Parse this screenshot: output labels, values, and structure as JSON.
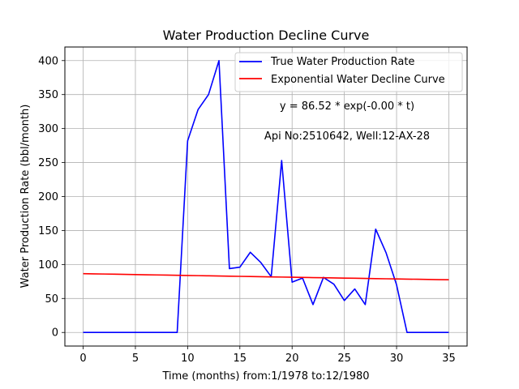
{
  "chart_data": {
    "type": "line",
    "title": "Water Production Decline Curve",
    "xlabel": "Time (months) from:1/1978 to:12/1980",
    "ylabel": "Water Production Rate (bbl/month)",
    "xlim": [
      -1.75,
      36.75
    ],
    "ylim": [
      -20,
      420
    ],
    "x_ticks": [
      0,
      5,
      10,
      15,
      20,
      25,
      30,
      35
    ],
    "y_ticks": [
      0,
      50,
      100,
      150,
      200,
      250,
      300,
      350,
      400
    ],
    "grid": true,
    "legend_position": "top-right",
    "series": [
      {
        "name": "True Water Production Rate",
        "color": "#0000ff",
        "x": [
          0,
          1,
          2,
          3,
          4,
          5,
          6,
          7,
          8,
          9,
          10,
          11,
          12,
          13,
          14,
          15,
          16,
          17,
          18,
          19,
          20,
          21,
          22,
          23,
          24,
          25,
          26,
          27,
          28,
          29,
          30,
          31,
          32,
          33,
          34,
          35
        ],
        "values": [
          0,
          0,
          0,
          0,
          0,
          0,
          0,
          0,
          0,
          0,
          282,
          328,
          350,
          400,
          94,
          96,
          118,
          103,
          82,
          253,
          74,
          80,
          41,
          81,
          71,
          47,
          64,
          41,
          152,
          117,
          70,
          0,
          0,
          0,
          0,
          0
        ]
      },
      {
        "name": "Exponential Water Decline Curve",
        "color": "#ff0000",
        "x": [
          0,
          1,
          2,
          3,
          4,
          5,
          6,
          7,
          8,
          9,
          10,
          11,
          12,
          13,
          14,
          15,
          16,
          17,
          18,
          19,
          20,
          21,
          22,
          23,
          24,
          25,
          26,
          27,
          28,
          29,
          30,
          31,
          32,
          33,
          34,
          35
        ],
        "values": [
          86.52,
          86.25,
          85.98,
          85.71,
          85.44,
          85.17,
          84.9,
          84.63,
          84.37,
          84.1,
          83.84,
          83.58,
          83.32,
          83.05,
          82.79,
          82.53,
          82.27,
          82.02,
          81.76,
          81.5,
          81.25,
          80.99,
          80.74,
          80.48,
          80.23,
          79.98,
          79.73,
          79.48,
          79.23,
          78.98,
          78.73,
          78.48,
          78.24,
          77.99,
          77.75,
          77.5
        ]
      }
    ],
    "annotations": [
      "y = 86.52 * exp(-0.00 * t)",
      "Api No:2510642, Well:12-AX-28"
    ]
  }
}
